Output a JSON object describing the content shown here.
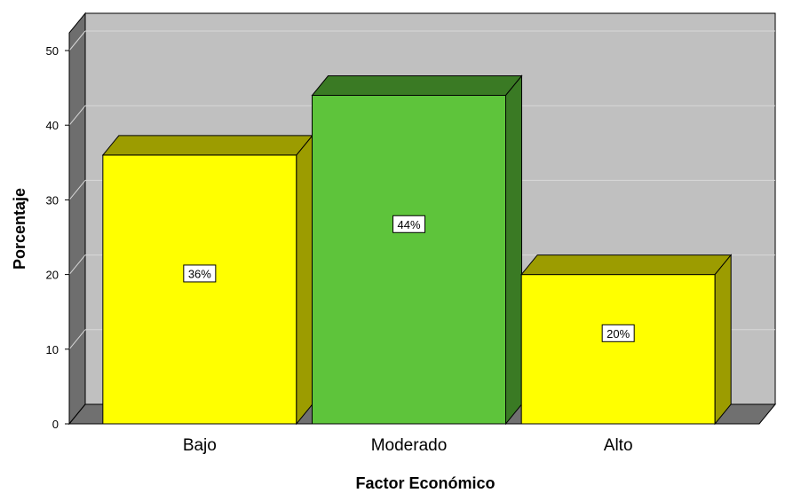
{
  "chart_data": {
    "type": "bar",
    "categories": [
      "Bajo",
      "Moderado",
      "Alto"
    ],
    "values": [
      36,
      44,
      20
    ],
    "data_labels": [
      "36%",
      "44%",
      "20%"
    ],
    "xlabel": "Factor Económico",
    "ylabel": "Porcentaje",
    "ylim": [
      0,
      50
    ],
    "yticks": [
      0,
      10,
      20,
      30,
      40,
      50
    ],
    "grid": true,
    "style": "3d",
    "colors": {
      "Bajo": {
        "front": "#ffff00",
        "top": "#9c9c00",
        "side": "#9c9c00"
      },
      "Moderado": {
        "front": "#5ec43b",
        "top": "#3a7a24",
        "side": "#3a7a24"
      },
      "Alto": {
        "front": "#ffff00",
        "top": "#9c9c00",
        "side": "#9c9c00"
      }
    },
    "background": {
      "wall": "#c0c0c0",
      "floor": "#707070",
      "side_wall": "#6e6e6e"
    }
  }
}
